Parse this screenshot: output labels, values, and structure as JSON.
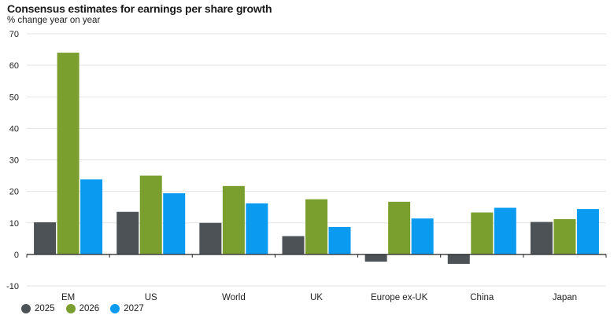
{
  "chart_data": {
    "type": "bar",
    "title": "Consensus estimates for earnings per share growth",
    "subtitle": "% change year on year",
    "categories": [
      "EM",
      "US",
      "World",
      "UK",
      "Europe ex-UK",
      "China",
      "Japan"
    ],
    "series": [
      {
        "name": "2025",
        "color": "#4d5256",
        "values": [
          10.2,
          13.5,
          10.0,
          5.8,
          -2.3,
          -3.0,
          10.3
        ]
      },
      {
        "name": "2026",
        "color": "#7a9f2e",
        "values": [
          64.0,
          25.0,
          21.7,
          17.5,
          16.7,
          13.3,
          11.2
        ]
      },
      {
        "name": "2027",
        "color": "#0a9bf0",
        "values": [
          23.8,
          19.4,
          16.2,
          8.7,
          11.4,
          14.8,
          14.4
        ]
      }
    ],
    "yticks": [
      -10,
      0,
      10,
      20,
      30,
      40,
      50,
      60,
      70
    ],
    "ylim": [
      -10,
      70
    ],
    "grid": true,
    "legend_position": "bottom-left"
  }
}
